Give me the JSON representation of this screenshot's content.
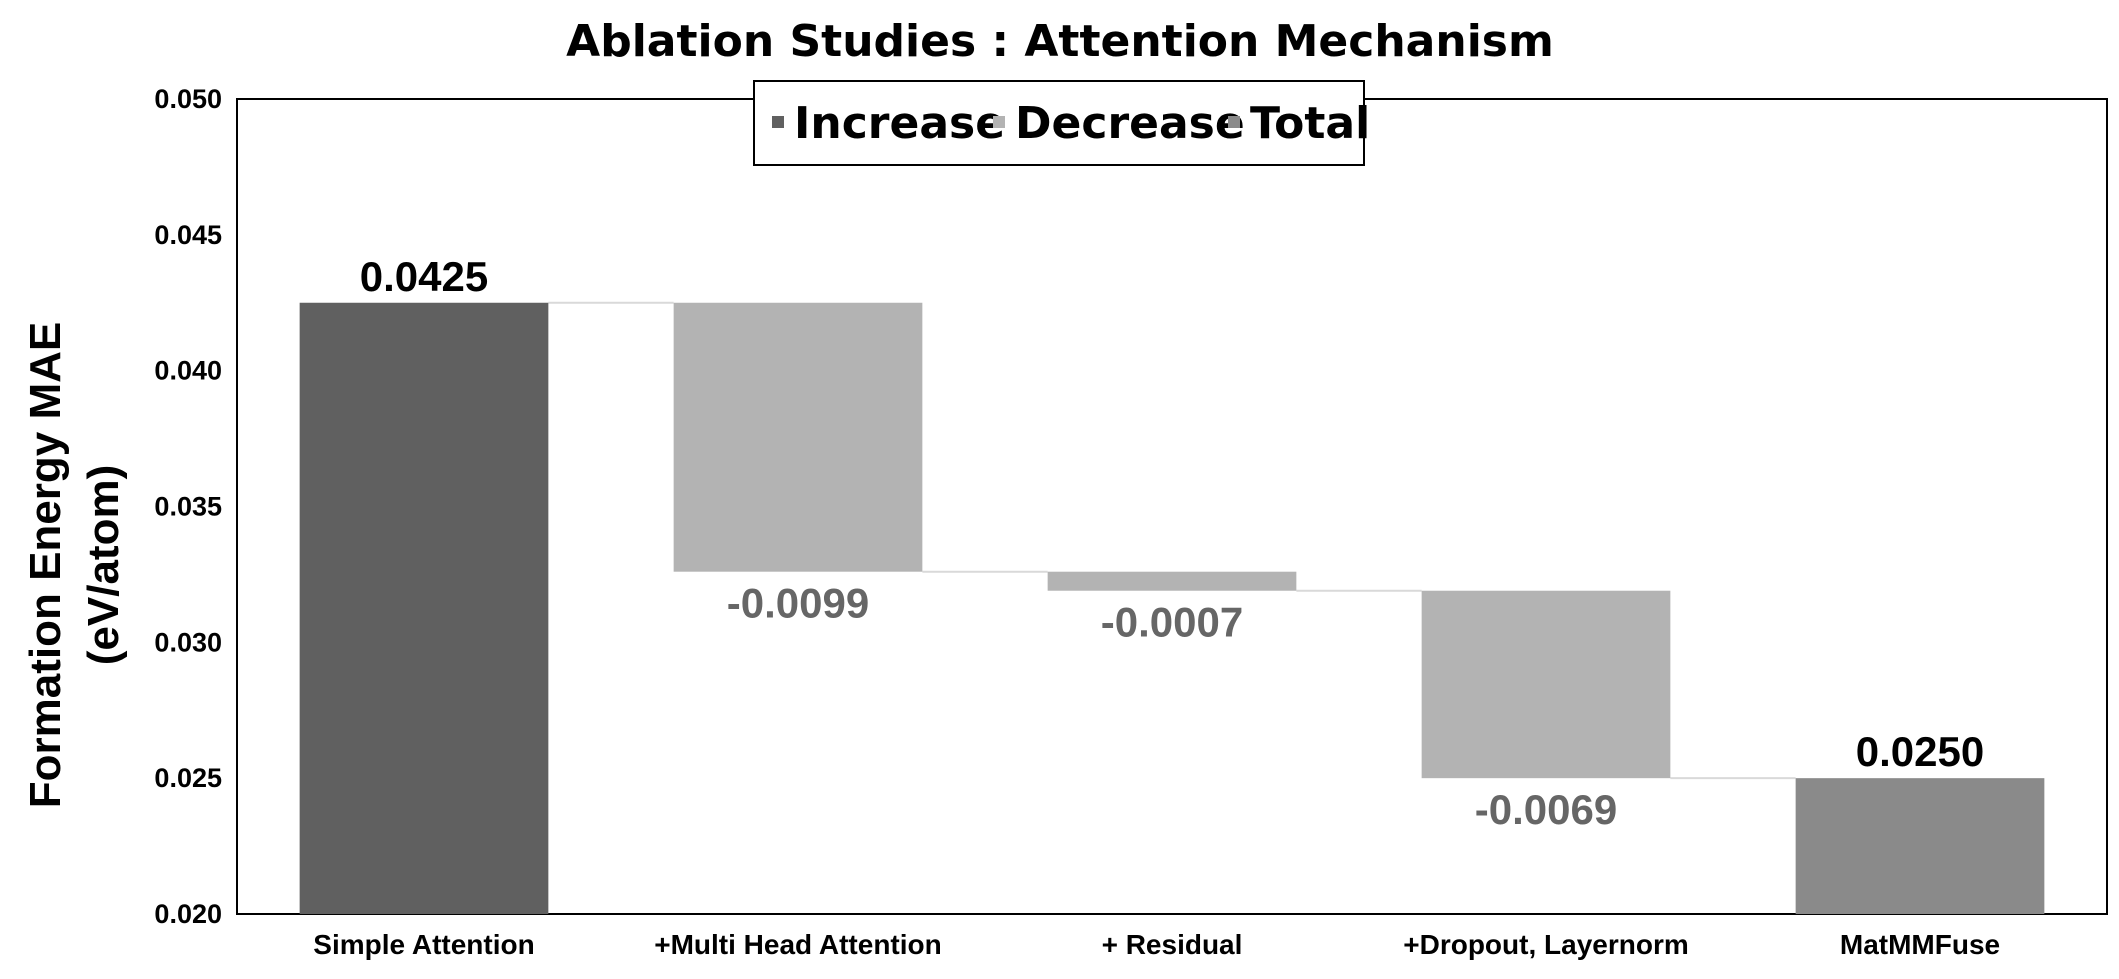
{
  "chart_data": {
    "type": "waterfall",
    "title": "Ablation Studies : Attention Mechanism",
    "ylabel_lines": [
      "Formation Energy MAE",
      "(eV/atom)"
    ],
    "xlabel": "",
    "ylim": [
      0.02,
      0.05
    ],
    "yticks": [
      "0.020",
      "0.025",
      "0.030",
      "0.035",
      "0.040",
      "0.045",
      "0.050"
    ],
    "grid": false,
    "legend_position": "top-center",
    "legend": [
      {
        "key": "increase",
        "label": "Increase",
        "color": "#606060"
      },
      {
        "key": "decrease",
        "label": "Decrease",
        "color": "#b3b3b3"
      },
      {
        "key": "total",
        "label": "Total",
        "color": "#8a8a8a"
      }
    ],
    "categories": [
      "Simple Attention",
      "+Multi Head Attention",
      "+ Residual",
      "+Dropout, Layernorm",
      "MatMMFuse"
    ],
    "points": [
      {
        "category": "Simple Attention",
        "kind": "increase",
        "start": 0.0,
        "end": 0.0425,
        "label": "0.0425"
      },
      {
        "category": "+Multi Head Attention",
        "kind": "decrease",
        "start": 0.0425,
        "end": 0.0326,
        "label": "-0.0099"
      },
      {
        "category": "+ Residual",
        "kind": "decrease",
        "start": 0.0326,
        "end": 0.0319,
        "label": "-0.0007"
      },
      {
        "category": "+Dropout, Layernorm",
        "kind": "decrease",
        "start": 0.0319,
        "end": 0.025,
        "label": "-0.0069"
      },
      {
        "category": "MatMMFuse",
        "kind": "total",
        "start": 0.0,
        "end": 0.025,
        "label": "0.0250"
      }
    ]
  }
}
